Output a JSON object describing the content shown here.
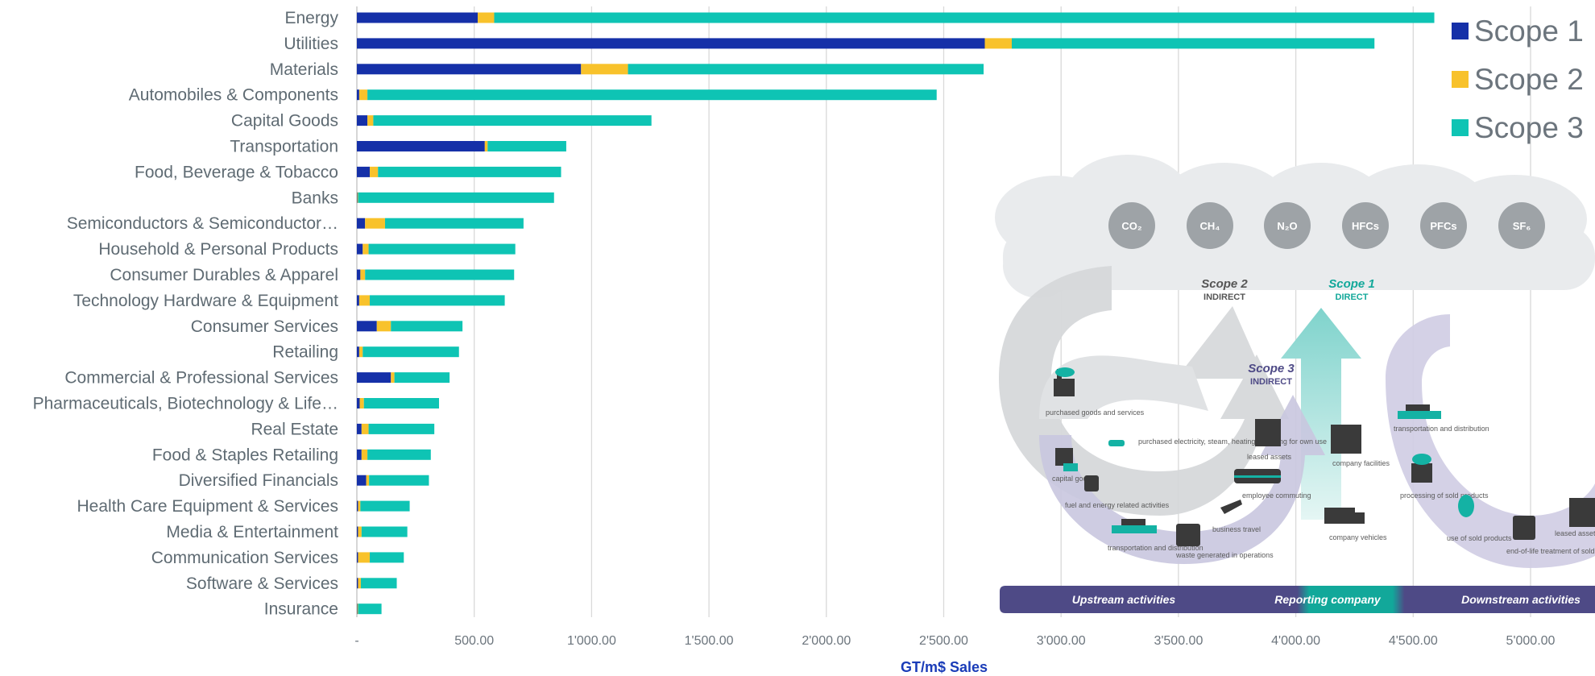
{
  "chart_data": {
    "type": "bar",
    "orientation": "horizontal",
    "stacked": true,
    "xlabel": "GT/m$ Sales",
    "xlim": [
      0,
      5200
    ],
    "x_tick_labels": [
      "-",
      "500.00",
      "1'000.00",
      "1'500.00",
      "2'000.00",
      "2'500.00",
      "3'000.00",
      "3'500.00",
      "4'000.00",
      "4'500.00",
      "5'000.00"
    ],
    "grid": "vertical",
    "legend_position": "top-right",
    "categories": [
      "Energy",
      "Utilities",
      "Materials",
      "Automobiles & Components",
      "Capital Goods",
      "Transportation",
      "Food, Beverage & Tobacco",
      "Banks",
      "Semiconductors & Semiconductor…",
      "Household & Personal Products",
      "Consumer Durables & Apparel",
      "Technology Hardware & Equipment",
      "Consumer Services",
      "Retailing",
      "Commercial & Professional Services",
      "Pharmaceuticals, Biotechnology & Life…",
      "Real Estate",
      "Food & Staples Retailing",
      "Diversified Financials",
      "Health Care Equipment & Services",
      "Media & Entertainment",
      "Communication Services",
      "Software & Services",
      "Insurance"
    ],
    "series": [
      {
        "name": "Scope 1",
        "color": "#1530a8",
        "values": [
          515,
          2675,
          955,
          10,
          45,
          545,
          55,
          2,
          35,
          25,
          15,
          10,
          85,
          10,
          145,
          12,
          20,
          20,
          40,
          5,
          5,
          5,
          5,
          2
        ]
      },
      {
        "name": "Scope 2",
        "color": "#f8c22b",
        "values": [
          70,
          115,
          200,
          35,
          25,
          12,
          35,
          3,
          85,
          25,
          20,
          45,
          60,
          15,
          15,
          18,
          30,
          25,
          12,
          10,
          15,
          50,
          12,
          3
        ]
      },
      {
        "name": "Scope 3",
        "color": "#0ec4b4",
        "values": [
          4005,
          1545,
          1515,
          2425,
          1185,
          335,
          780,
          835,
          590,
          625,
          635,
          575,
          305,
          410,
          235,
          320,
          280,
          270,
          255,
          210,
          195,
          145,
          153,
          100
        ]
      }
    ]
  },
  "infographic": {
    "gases": [
      "CO₂",
      "CH₄",
      "N₂O",
      "HFCs",
      "PFCs",
      "SF₆"
    ],
    "scope2": {
      "title": "Scope 2",
      "subtitle": "INDIRECT"
    },
    "scope1": {
      "title": "Scope 1",
      "subtitle": "DIRECT"
    },
    "scope3": {
      "title": "Scope 3",
      "subtitle": "INDIRECT"
    },
    "upstream_items": {
      "purchased_goods": "purchased goods and services",
      "electricity": "purchased electricity, steam, heating & cooling for own use",
      "capital_goods": "capital goods",
      "fuel": "fuel and energy related activities",
      "transport": "transportation and distribution",
      "waste": "waste generated in operations",
      "business_travel": "business travel",
      "employee_commuting": "employee commuting",
      "leased_assets": "leased assets"
    },
    "company_items": {
      "facilities": "company facilities",
      "vehicles": "company vehicles"
    },
    "downstream_items": {
      "transport": "transportation and distribution",
      "processing": "processing of sold products",
      "use": "use of sold products",
      "end_of_life": "end-of-life treatment of sold products",
      "leased_assets": "leased assets"
    },
    "bands": {
      "upstream": "Upstream activities",
      "reporting": "Reporting company",
      "downstream": "Downstream activities"
    }
  }
}
